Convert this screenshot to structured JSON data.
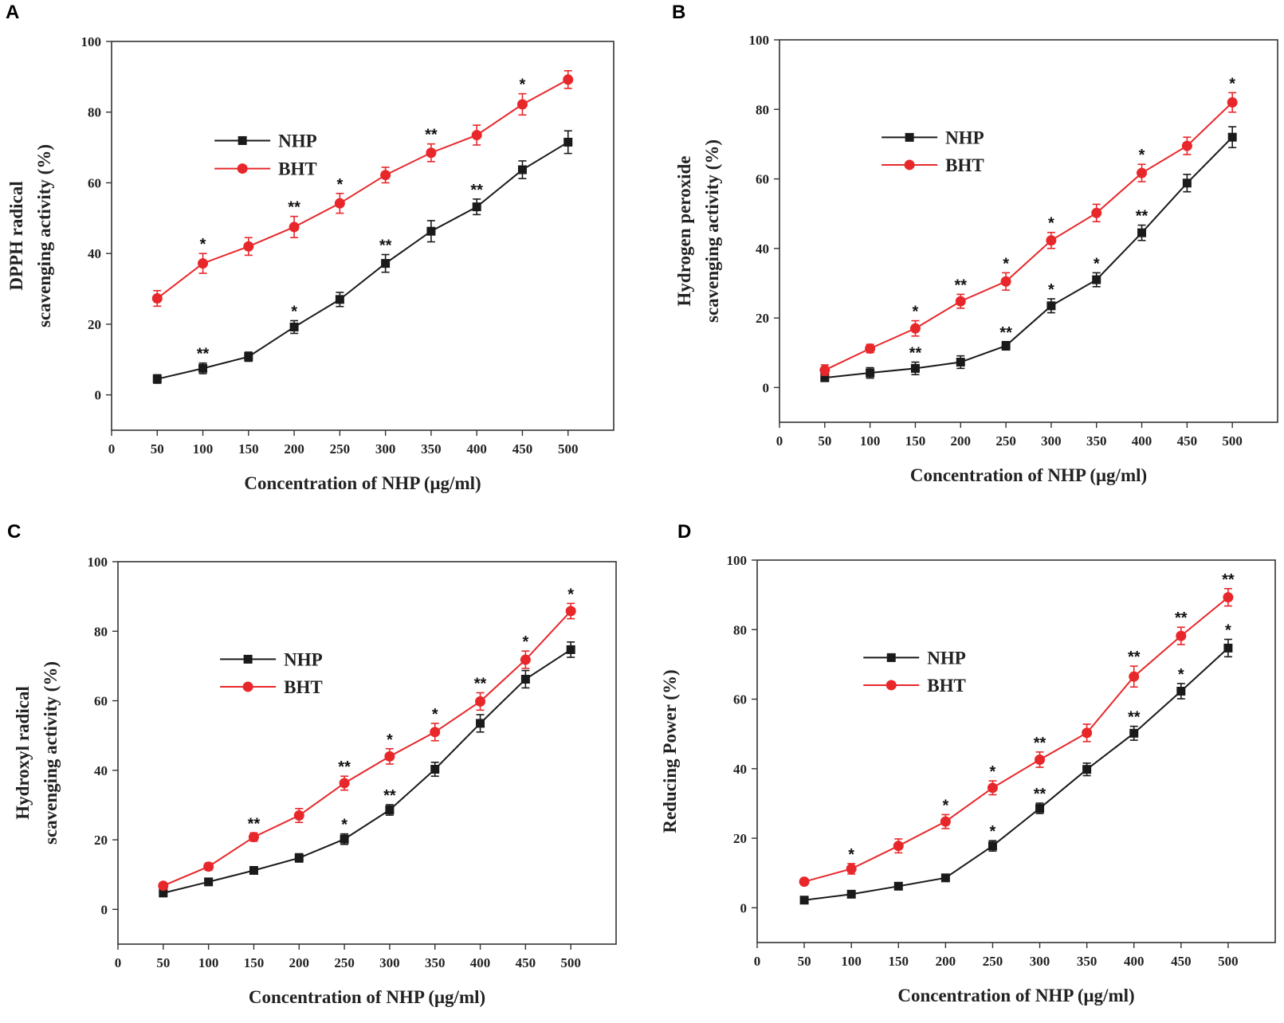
{
  "chart_data": [
    {
      "panel": "A",
      "type": "line",
      "xlabel": "Concentration of NHP (μg/ml)",
      "ylabel_lines": [
        "DPPH radical",
        "scavenging activity (%)"
      ],
      "xlim": [
        0,
        550
      ],
      "ylim": [
        -10,
        100
      ],
      "xticks": [
        0,
        50,
        100,
        150,
        200,
        250,
        300,
        350,
        400,
        450,
        500
      ],
      "yticks": [
        0,
        20,
        40,
        60,
        80,
        100
      ],
      "x": [
        50,
        100,
        150,
        200,
        250,
        300,
        350,
        400,
        450,
        500
      ],
      "legend_position": "upper-left",
      "series": [
        {
          "name": "NHP",
          "color": "#1a1a1a",
          "marker": "square",
          "values": [
            4.5,
            7.5,
            10.8,
            19.2,
            27.0,
            37.2,
            46.3,
            53.2,
            63.7,
            71.5
          ],
          "errors": [
            1.2,
            1.5,
            1.3,
            1.8,
            2.0,
            2.5,
            3.0,
            2.2,
            2.5,
            3.2
          ],
          "stars": [
            "",
            "**",
            "",
            "*",
            "",
            "**",
            "",
            "**",
            "",
            ""
          ]
        },
        {
          "name": "BHT",
          "color": "#e8272a",
          "marker": "circle",
          "values": [
            27.3,
            37.2,
            42.0,
            47.5,
            54.2,
            62.2,
            68.5,
            73.5,
            82.2,
            89.2
          ],
          "errors": [
            2.2,
            2.8,
            2.5,
            3.0,
            2.8,
            2.2,
            2.5,
            2.8,
            3.0,
            2.5
          ],
          "stars": [
            "",
            "*",
            "",
            "**",
            "*",
            "",
            "**",
            "",
            "*",
            ""
          ]
        }
      ]
    },
    {
      "panel": "B",
      "type": "line",
      "xlabel": "Concentration of NHP (μg/ml)",
      "ylabel_lines": [
        "Hydrogen peroxide",
        "scavenging activity (%)"
      ],
      "xlim": [
        0,
        550
      ],
      "ylim": [
        -10,
        100
      ],
      "xticks": [
        0,
        50,
        100,
        150,
        200,
        250,
        300,
        350,
        400,
        450,
        500
      ],
      "yticks": [
        0,
        20,
        40,
        60,
        80,
        100
      ],
      "x": [
        50,
        100,
        150,
        200,
        250,
        300,
        350,
        400,
        450,
        500
      ],
      "legend_position": "upper-left",
      "series": [
        {
          "name": "NHP",
          "color": "#1a1a1a",
          "marker": "square",
          "values": [
            2.8,
            4.2,
            5.5,
            7.3,
            12.0,
            23.5,
            31.0,
            44.5,
            58.8,
            72.0
          ],
          "errors": [
            1.0,
            1.5,
            1.8,
            1.8,
            1.2,
            2.0,
            2.0,
            2.2,
            2.5,
            3.0
          ],
          "stars": [
            "",
            "",
            "**",
            "",
            "**",
            "*",
            "*",
            "**",
            "",
            ""
          ]
        },
        {
          "name": "BHT",
          "color": "#e8272a",
          "marker": "circle",
          "values": [
            5.0,
            11.2,
            17.0,
            24.8,
            30.5,
            42.3,
            50.2,
            61.7,
            69.5,
            82.0
          ],
          "errors": [
            1.5,
            1.2,
            2.2,
            2.0,
            2.5,
            2.3,
            2.5,
            2.5,
            2.5,
            2.8
          ],
          "stars": [
            "",
            "",
            "*",
            "**",
            "*",
            "*",
            "",
            "*",
            "",
            "*"
          ]
        }
      ]
    },
    {
      "panel": "C",
      "type": "line",
      "xlabel": "Concentration of NHP (μg/ml)",
      "ylabel_lines": [
        "Hydroxyl radical",
        "scavenging activity (%)"
      ],
      "xlim": [
        0,
        550
      ],
      "ylim": [
        -10,
        100
      ],
      "xticks": [
        0,
        50,
        100,
        150,
        200,
        250,
        300,
        350,
        400,
        450,
        500
      ],
      "yticks": [
        0,
        20,
        40,
        60,
        80,
        100
      ],
      "x": [
        50,
        100,
        150,
        200,
        250,
        300,
        350,
        400,
        450,
        500
      ],
      "legend_position": "upper-left",
      "series": [
        {
          "name": "NHP",
          "color": "#1a1a1a",
          "marker": "square",
          "values": [
            4.7,
            7.9,
            11.2,
            14.8,
            20.2,
            28.6,
            40.3,
            53.5,
            66.2,
            74.7
          ],
          "errors": [
            0.8,
            0.8,
            1.0,
            1.2,
            1.5,
            1.5,
            2.0,
            2.5,
            2.5,
            2.2
          ],
          "stars": [
            "",
            "",
            "",
            "",
            "*",
            "**",
            "",
            "",
            "",
            ""
          ]
        },
        {
          "name": "BHT",
          "color": "#e8272a",
          "marker": "circle",
          "values": [
            6.8,
            12.3,
            20.8,
            27.0,
            36.3,
            44.0,
            51.0,
            59.8,
            71.8,
            85.8
          ],
          "errors": [
            0.8,
            1.0,
            1.2,
            2.0,
            2.0,
            2.2,
            2.5,
            2.5,
            2.5,
            2.2
          ],
          "stars": [
            "",
            "",
            "**",
            "",
            "**",
            "*",
            "*",
            "**",
            "*",
            "*"
          ]
        }
      ]
    },
    {
      "panel": "D",
      "type": "line",
      "xlabel": "Concentration of NHP (μg/ml)",
      "ylabel_lines": [
        "Reducing Power (%)"
      ],
      "xlim": [
        0,
        550
      ],
      "ylim": [
        -10,
        100
      ],
      "xticks": [
        0,
        50,
        100,
        150,
        200,
        250,
        300,
        350,
        400,
        450,
        500
      ],
      "yticks": [
        0,
        20,
        40,
        60,
        80,
        100
      ],
      "x": [
        50,
        100,
        150,
        200,
        250,
        300,
        350,
        400,
        450,
        500
      ],
      "legend_position": "upper-left",
      "series": [
        {
          "name": "NHP",
          "color": "#1a1a1a",
          "marker": "square",
          "values": [
            2.2,
            3.9,
            6.2,
            8.6,
            17.8,
            28.6,
            39.8,
            50.2,
            62.3,
            74.7
          ],
          "errors": [
            0.8,
            0.8,
            0.8,
            1.0,
            1.5,
            1.5,
            1.8,
            2.0,
            2.2,
            2.5
          ],
          "stars": [
            "",
            "",
            "",
            "",
            "*",
            "**",
            "",
            "**",
            "*",
            "*"
          ]
        },
        {
          "name": "BHT",
          "color": "#e8272a",
          "marker": "circle",
          "values": [
            7.5,
            11.2,
            17.8,
            24.8,
            34.5,
            42.6,
            50.3,
            66.5,
            78.2,
            89.3
          ],
          "errors": [
            0.8,
            1.5,
            2.0,
            2.0,
            2.0,
            2.2,
            2.5,
            3.0,
            2.5,
            2.5
          ],
          "stars": [
            "",
            "*",
            "",
            "*",
            "*",
            "**",
            "",
            "**",
            "**",
            "**"
          ]
        }
      ]
    }
  ]
}
